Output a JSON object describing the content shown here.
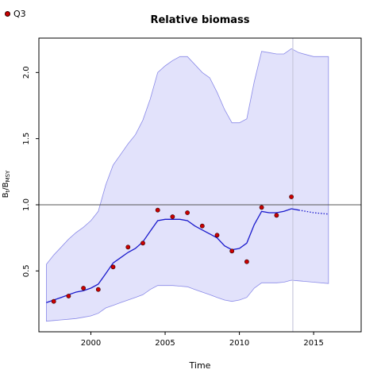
{
  "chart_data": {
    "type": "line",
    "title": "Relative biomass",
    "xlabel": "Time",
    "ylabel_main": "B",
    "ylabel_sub1": "t",
    "ylabel_sep": "/B",
    "ylabel_sub2": "MSY",
    "xlim": [
      1996.5,
      2018.2
    ],
    "ylim": [
      0.04,
      2.26
    ],
    "x_ticks": [
      2000,
      2005,
      2010,
      2015
    ],
    "y_ticks": [
      0.5,
      1.0,
      1.5,
      2.0
    ],
    "x_tick_labels": [
      "2000",
      "2005",
      "2010",
      "2015"
    ],
    "y_tick_labels": [
      "0.5",
      "1.0",
      "1.5",
      "2.0"
    ],
    "reference_line_y": 1.0,
    "vertical_line_x": 2013.6,
    "legend": {
      "label": "Q3",
      "position": "top-left"
    },
    "colors": {
      "band_fill": "#e2e2fb",
      "band_edge": "#8a8ae8",
      "median_line": "#1a1acc",
      "points_fill": "#cc0000",
      "points_edge": "#330000",
      "reference_line": "#555555",
      "vertical_line": "#c8c8dc"
    },
    "series": [
      {
        "name": "Q3",
        "kind": "points",
        "x": [
          1997.5,
          1998.5,
          1999.5,
          2000.5,
          2001.5,
          2002.5,
          2003.5,
          2004.5,
          2005.5,
          2006.5,
          2007.5,
          2008.5,
          2009.5,
          2010.5,
          2011.5,
          2012.5,
          2013.5
        ],
        "y": [
          0.27,
          0.31,
          0.37,
          0.36,
          0.53,
          0.68,
          0.71,
          0.96,
          0.91,
          0.94,
          0.84,
          0.77,
          0.65,
          0.57,
          0.98,
          0.92,
          1.06
        ]
      },
      {
        "kind": "median",
        "x": [
          1997.0,
          1997.5,
          1998.0,
          1998.5,
          1999.0,
          1999.5,
          2000.0,
          2000.5,
          2001.0,
          2001.5,
          2002.0,
          2002.5,
          2003.0,
          2003.5,
          2004.0,
          2004.5,
          2005.0,
          2005.5,
          2006.0,
          2006.5,
          2007.0,
          2007.5,
          2008.0,
          2008.5,
          2009.0,
          2009.5,
          2010.0,
          2010.5,
          2011.0,
          2011.5,
          2012.0,
          2012.5,
          2013.0,
          2013.5,
          2014.0
        ],
        "y": [
          0.26,
          0.28,
          0.3,
          0.32,
          0.34,
          0.35,
          0.37,
          0.4,
          0.48,
          0.56,
          0.6,
          0.64,
          0.67,
          0.72,
          0.8,
          0.88,
          0.89,
          0.89,
          0.89,
          0.88,
          0.84,
          0.81,
          0.78,
          0.75,
          0.69,
          0.66,
          0.67,
          0.71,
          0.85,
          0.95,
          0.94,
          0.94,
          0.95,
          0.97,
          0.96
        ]
      },
      {
        "kind": "forecast",
        "x": [
          2014.0,
          2015.0,
          2016.0
        ],
        "y": [
          0.96,
          0.94,
          0.93
        ]
      },
      {
        "kind": "band",
        "x": [
          1997.0,
          1997.5,
          1998.0,
          1998.5,
          1999.0,
          1999.5,
          2000.0,
          2000.5,
          2001.0,
          2001.5,
          2002.0,
          2002.5,
          2003.0,
          2003.5,
          2004.0,
          2004.5,
          2005.0,
          2005.5,
          2006.0,
          2006.5,
          2007.0,
          2007.5,
          2008.0,
          2008.5,
          2009.0,
          2009.5,
          2010.0,
          2010.5,
          2011.0,
          2011.5,
          2012.0,
          2012.5,
          2013.0,
          2013.5,
          2014.0,
          2015.0,
          2016.0
        ],
        "upper": [
          0.55,
          0.62,
          0.68,
          0.74,
          0.79,
          0.83,
          0.88,
          0.95,
          1.15,
          1.3,
          1.38,
          1.46,
          1.53,
          1.64,
          1.8,
          2.0,
          2.05,
          2.09,
          2.12,
          2.12,
          2.06,
          2.0,
          1.96,
          1.85,
          1.72,
          1.62,
          1.62,
          1.65,
          1.93,
          2.16,
          2.15,
          2.14,
          2.14,
          2.18,
          2.15,
          2.12,
          2.12
        ],
        "lower": [
          0.12,
          0.125,
          0.13,
          0.135,
          0.14,
          0.15,
          0.16,
          0.18,
          0.22,
          0.24,
          0.26,
          0.28,
          0.3,
          0.32,
          0.36,
          0.39,
          0.39,
          0.39,
          0.385,
          0.38,
          0.36,
          0.34,
          0.32,
          0.3,
          0.28,
          0.27,
          0.28,
          0.3,
          0.37,
          0.41,
          0.41,
          0.41,
          0.415,
          0.43,
          0.425,
          0.415,
          0.405
        ]
      }
    ]
  }
}
